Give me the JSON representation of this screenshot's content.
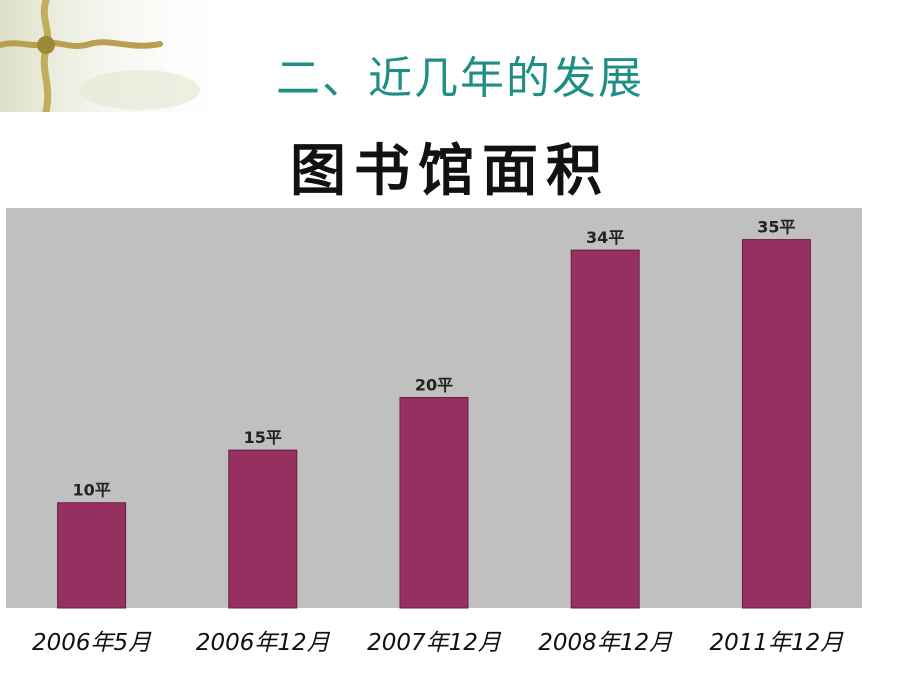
{
  "slide": {
    "title": "二、近几年的发展"
  },
  "chart_data": {
    "type": "bar",
    "title": "图书馆面积",
    "categories": [
      "2006年5月",
      "2006年12月",
      "2007年12月",
      "2008年12月",
      "2011年12月"
    ],
    "values": [
      10,
      15,
      20,
      34,
      35
    ],
    "data_labels": [
      "10平",
      "15平",
      "20平",
      "34平",
      "35平"
    ],
    "ylim": [
      0,
      38
    ],
    "grid": false,
    "legend": "none",
    "colors": {
      "bar": "#963060",
      "plot_bg": "#c0c0c0",
      "label": "#222222",
      "title_teal": "#1f8f86"
    }
  }
}
